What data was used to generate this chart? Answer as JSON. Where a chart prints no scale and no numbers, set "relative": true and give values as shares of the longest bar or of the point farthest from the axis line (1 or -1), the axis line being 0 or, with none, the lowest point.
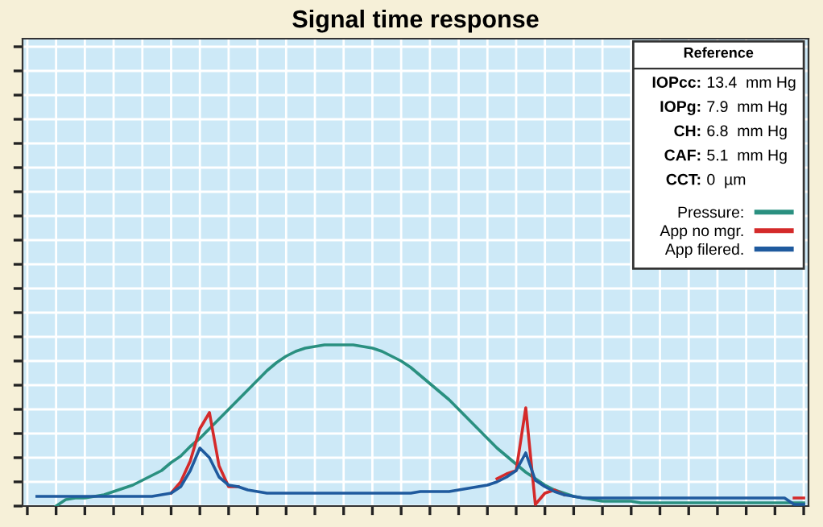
{
  "chart_data": {
    "type": "line",
    "title": "Signal time response",
    "relative": true,
    "grid": true,
    "tick_labels": false,
    "legend": "top right",
    "legend_title": "Reference",
    "annotations": [
      "IOPcc: 13.4  mm Hg",
      "IOPg:  7.9  mm Hg",
      "CH:  6.8  mm Hg",
      "CAF:  5.1  mm Hg",
      "CCT:  0  µm"
    ],
    "categories": [
      null,
      null,
      null,
      null,
      null,
      null,
      null,
      null,
      null,
      null,
      null,
      null,
      null,
      null,
      null,
      null,
      null,
      null,
      null,
      null,
      null,
      null,
      null,
      null,
      null,
      null,
      null,
      null,
      null,
      null,
      null,
      null,
      null,
      null,
      null,
      null,
      null,
      null,
      null,
      null,
      null,
      null,
      null,
      null,
      null,
      null,
      null,
      null,
      null,
      null,
      null,
      null,
      null,
      null,
      null,
      null,
      null,
      null,
      null,
      null,
      null,
      null,
      null,
      null,
      null,
      null,
      null,
      null,
      null,
      null,
      null,
      null,
      null,
      null,
      null,
      null,
      null,
      null,
      null,
      null,
      null,
      null
    ],
    "series": [
      {
        "name": "Pressure:",
        "color": "#2a9080",
        "values": [
          null,
          null,
          null,
          0,
          0.04,
          0.05,
          0.05,
          0.06,
          0.07,
          0.09,
          0.11,
          0.13,
          0.16,
          0.19,
          0.22,
          0.27,
          0.31,
          0.37,
          0.42,
          0.48,
          0.54,
          0.6,
          0.66,
          0.72,
          0.78,
          0.84,
          0.89,
          0.93,
          0.96,
          0.98,
          0.99,
          1,
          1,
          1,
          1,
          0.99,
          0.98,
          0.96,
          0.93,
          0.9,
          0.86,
          0.81,
          0.76,
          0.71,
          0.66,
          0.6,
          0.54,
          0.48,
          0.42,
          0.36,
          0.31,
          0.26,
          0.21,
          0.17,
          0.13,
          0.1,
          0.08,
          0.06,
          0.05,
          0.04,
          0.03,
          0.03,
          0.03,
          0.03,
          0.02,
          0.02,
          0.02,
          0.02,
          0.02,
          0.02,
          0.02,
          0.02,
          0.02,
          0.02,
          0.02,
          0.02,
          0.02,
          0.02,
          0.02,
          0.02,
          0.02,
          0.02
        ]
      },
      {
        "name": "App no mgr.",
        "color": "#d42a2a",
        "values": [
          null,
          null,
          null,
          null,
          null,
          null,
          null,
          null,
          null,
          null,
          null,
          null,
          null,
          null,
          null,
          0.08,
          0.15,
          0.28,
          0.48,
          0.58,
          0.25,
          0.12,
          0.12,
          null,
          null,
          null,
          null,
          null,
          null,
          null,
          null,
          null,
          null,
          null,
          null,
          null,
          null,
          null,
          null,
          null,
          null,
          null,
          null,
          null,
          null,
          null,
          null,
          null,
          null,
          0.17,
          0.2,
          0.22,
          0.61,
          0.01,
          0.08,
          0.1,
          0.07,
          null,
          null,
          null,
          null,
          null,
          null,
          null,
          null,
          null,
          null,
          null,
          null,
          null,
          null,
          null,
          null,
          null,
          null,
          null,
          null,
          null,
          null,
          null,
          0.05,
          0.05
        ]
      },
      {
        "name": "App filered.",
        "color": "#1f5a9e",
        "values": [
          null,
          0.06,
          0.06,
          0.06,
          0.06,
          0.06,
          0.06,
          0.06,
          0.06,
          0.06,
          0.06,
          0.06,
          0.06,
          0.06,
          0.07,
          0.08,
          0.12,
          0.22,
          0.36,
          0.3,
          0.18,
          0.13,
          0.12,
          0.1,
          0.09,
          0.08,
          0.08,
          0.08,
          0.08,
          0.08,
          0.08,
          0.08,
          0.08,
          0.08,
          0.08,
          0.08,
          0.08,
          0.08,
          0.08,
          0.08,
          0.08,
          0.09,
          0.09,
          0.09,
          0.09,
          0.1,
          0.11,
          0.12,
          0.13,
          0.15,
          0.18,
          0.22,
          0.33,
          0.16,
          0.12,
          0.09,
          0.07,
          0.06,
          0.05,
          0.05,
          0.05,
          0.05,
          0.05,
          0.05,
          0.05,
          0.05,
          0.05,
          0.05,
          0.05,
          0.05,
          0.05,
          0.05,
          0.05,
          0.05,
          0.05,
          0.05,
          0.05,
          0.05,
          0.05,
          0.05,
          0.01,
          0.01
        ]
      }
    ]
  }
}
